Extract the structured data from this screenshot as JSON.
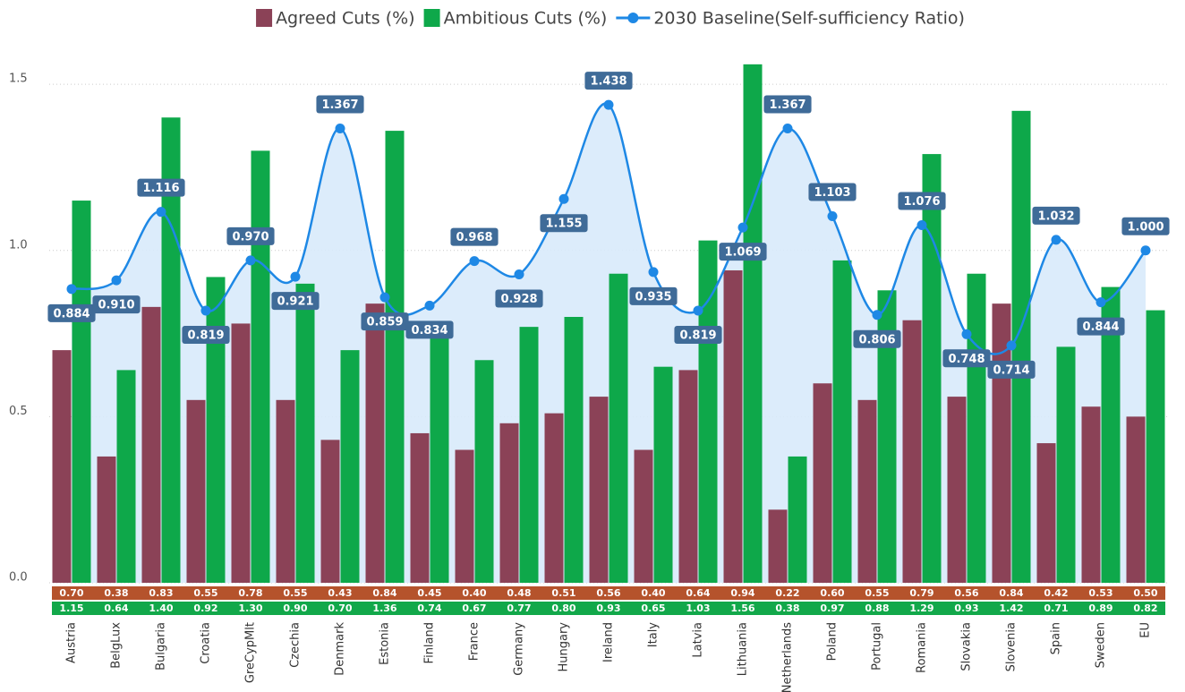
{
  "chart_data": {
    "type": "bar",
    "categories": [
      "Austria",
      "BelgLux",
      "Bulgaria",
      "Croatia",
      "GreCypMlt",
      "Czechia",
      "Denmark",
      "Estonia",
      "Finland",
      "France",
      "Germany",
      "Hungary",
      "Ireland",
      "Italy",
      "Latvia",
      "Lithuania",
      "Netherlands",
      "Poland",
      "Portugal",
      "Romania",
      "Slovakia",
      "Slovenia",
      "Spain",
      "Sweden",
      "EU"
    ],
    "series": [
      {
        "name": "Agreed Cuts (%)",
        "type": "bar",
        "color": "#8b4257",
        "values": [
          0.7,
          0.38,
          0.83,
          0.55,
          0.78,
          0.55,
          0.43,
          0.84,
          0.45,
          0.4,
          0.48,
          0.51,
          0.56,
          0.4,
          0.64,
          0.94,
          0.22,
          0.6,
          0.55,
          0.79,
          0.56,
          0.84,
          0.42,
          0.53,
          0.5
        ],
        "value_labels": [
          "0.70",
          "0.38",
          "0.83",
          "0.55",
          "0.78",
          "0.55",
          "0.43",
          "0.84",
          "0.45",
          "0.40",
          "0.48",
          "0.51",
          "0.56",
          "0.40",
          "0.64",
          "0.94",
          "0.22",
          "0.60",
          "0.55",
          "0.79",
          "0.56",
          "0.84",
          "0.42",
          "0.53",
          "0.50"
        ]
      },
      {
        "name": "Ambitious Cuts (%)",
        "type": "bar",
        "color": "#0ea84a",
        "values": [
          1.15,
          0.64,
          1.4,
          0.92,
          1.3,
          0.9,
          0.7,
          1.36,
          0.74,
          0.67,
          0.77,
          0.8,
          0.93,
          0.65,
          1.03,
          1.56,
          0.38,
          0.97,
          0.88,
          1.29,
          0.93,
          1.42,
          0.71,
          0.89,
          0.82
        ],
        "value_labels": [
          "1.15",
          "0.64",
          "1.40",
          "0.92",
          "1.30",
          "0.90",
          "0.70",
          "1.36",
          "0.74",
          "0.67",
          "0.77",
          "0.80",
          "0.93",
          "0.65",
          "1.03",
          "1.56",
          "0.38",
          "0.97",
          "0.88",
          "1.29",
          "0.93",
          "1.42",
          "0.71",
          "0.89",
          "0.82"
        ]
      },
      {
        "name": "2030 Baseline(Self-sufficiency Ratio)",
        "type": "line",
        "color": "#1e88e5",
        "values": [
          0.884,
          0.91,
          1.116,
          0.819,
          0.97,
          0.921,
          1.367,
          0.859,
          0.834,
          0.968,
          0.928,
          1.155,
          1.438,
          0.935,
          0.819,
          1.069,
          1.367,
          1.103,
          0.806,
          1.076,
          0.748,
          0.714,
          1.032,
          0.844,
          1.0
        ],
        "value_labels": [
          "0.884",
          "0.910",
          "1.116",
          "0.819",
          "0.970",
          "0.921",
          "1.367",
          "0.859",
          "0.834",
          "0.968",
          "0.928",
          "1.155",
          "1.438",
          "0.935",
          "0.819",
          "1.069",
          "1.367",
          "1.103",
          "0.806",
          "1.076",
          "0.748",
          "0.714",
          "1.032",
          "0.844",
          "1.000"
        ]
      }
    ],
    "ylim": [
      0,
      1.6
    ],
    "yticks": [
      {
        "value": 0,
        "label": "0.0"
      },
      {
        "value": 0.5,
        "label": "0.5"
      },
      {
        "value": 1,
        "label": "1.0"
      },
      {
        "value": 1.5,
        "label": "1.5"
      }
    ],
    "grid": true,
    "legend": "top"
  }
}
